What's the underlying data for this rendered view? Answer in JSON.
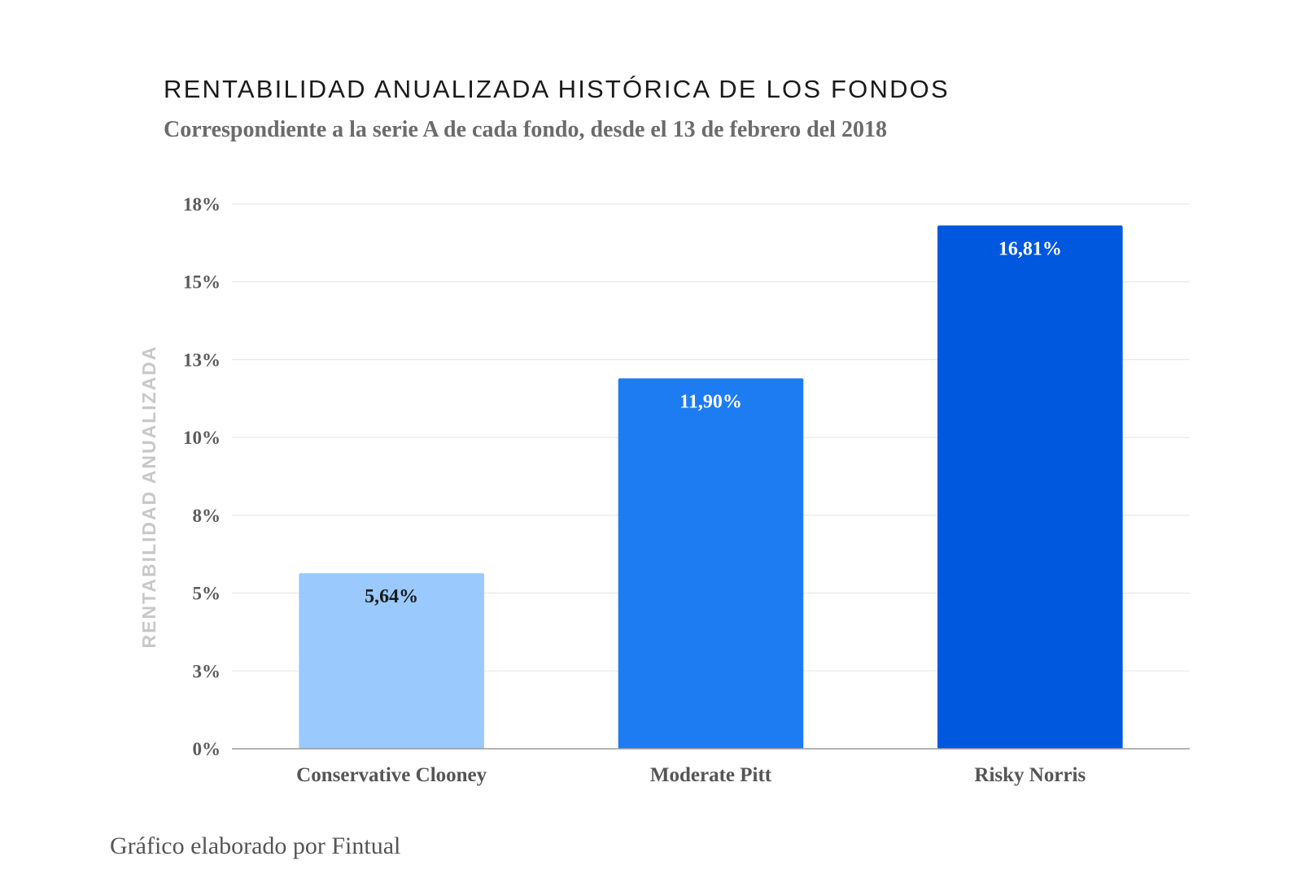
{
  "header": {
    "title": "RENTABILIDAD ANUALIZADA HISTÓRICA DE LOS FONDOS",
    "subtitle": "Correspondiente a la serie A de cada fondo, desde el 13 de febrero del 2018"
  },
  "footer": {
    "credit": "Gráfico elaborado por Fintual"
  },
  "chart_data": {
    "type": "bar",
    "title": "RENTABILIDAD ANUALIZADA HISTÓRICA DE LOS FONDOS",
    "subtitle": "Correspondiente a la serie A de cada fondo, desde el 13 de febrero del 2018",
    "xlabel": "",
    "ylabel": "RENTABILIDAD ANUALIZADA",
    "categories": [
      "Conservative Clooney",
      "Moderate Pitt",
      "Risky Norris"
    ],
    "values": [
      5.64,
      11.9,
      16.81
    ],
    "data_labels": [
      "5,64%",
      "11,90%",
      "16,81%"
    ],
    "bar_colors": [
      "#99c9fd",
      "#1e7cf2",
      "#0058df"
    ],
    "data_label_colors": [
      "#1a1a1a",
      "#ffffff",
      "#ffffff"
    ],
    "y_ticks": [
      0,
      2.5,
      5,
      7.5,
      10,
      12.5,
      15,
      17.5
    ],
    "y_tick_labels": [
      "0%",
      "3%",
      "5%",
      "8%",
      "10%",
      "13%",
      "15%",
      "18%"
    ],
    "ylim": [
      0,
      17.5
    ],
    "grid": true,
    "legend": "none"
  }
}
